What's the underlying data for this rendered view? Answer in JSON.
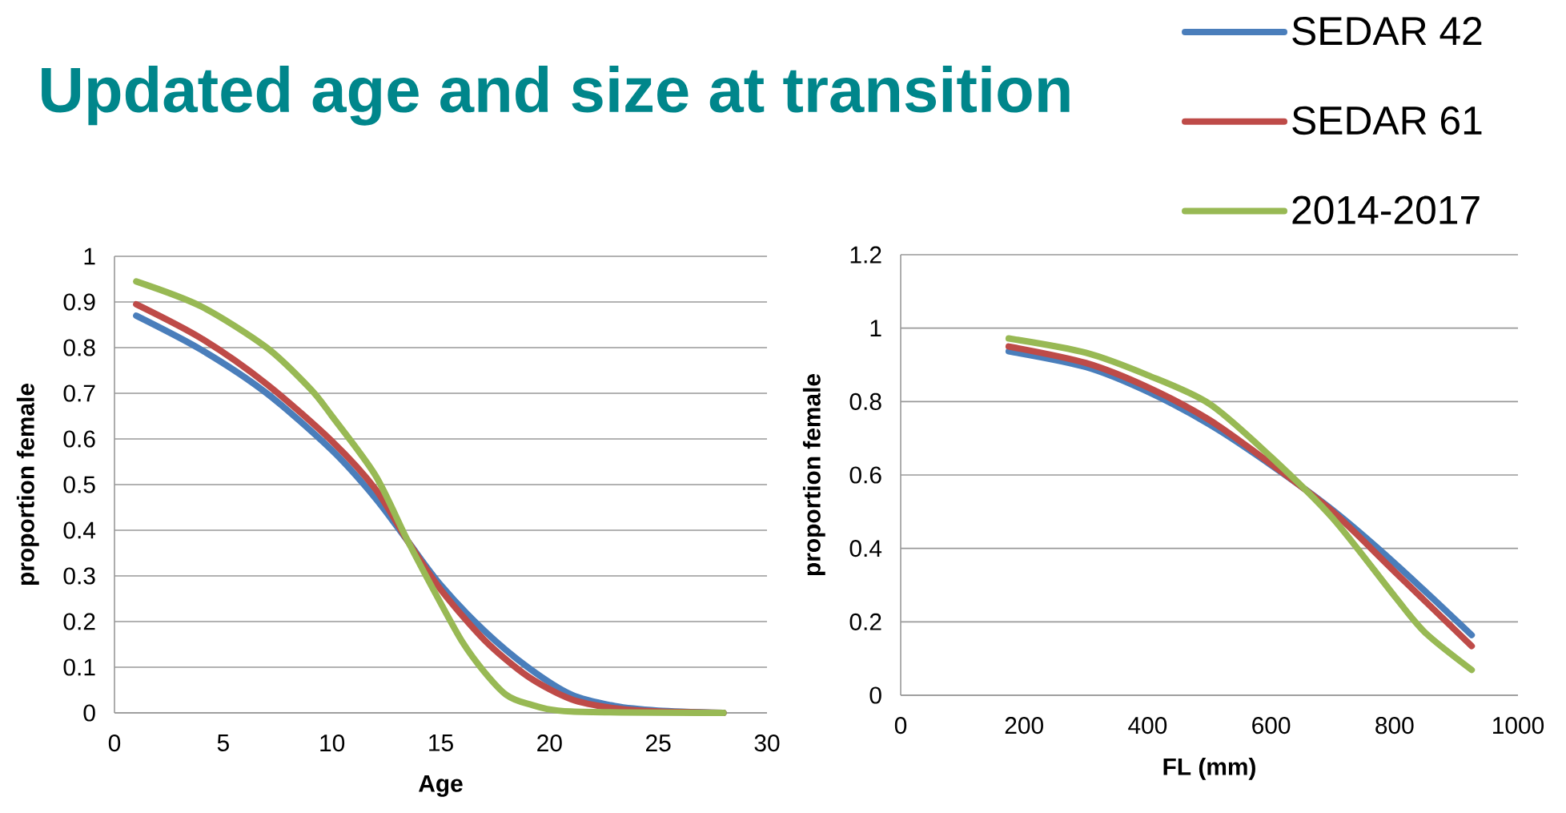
{
  "chart_data": [
    {
      "type": "line",
      "title": "Updated age and size at transition",
      "xlabel": "Age",
      "ylabel": "proportion female",
      "xlim": [
        0,
        30
      ],
      "ylim": [
        0,
        1
      ],
      "xticks": [
        0,
        5,
        10,
        15,
        20,
        25,
        30
      ],
      "yticks": [
        0,
        0.1,
        0.2,
        0.3,
        0.4,
        0.5,
        0.6,
        0.7,
        0.8,
        0.9,
        1
      ],
      "grid": "y",
      "legend": false,
      "x": [
        1,
        4,
        7,
        10,
        12,
        13.5,
        15,
        17,
        19,
        21,
        23,
        25,
        28
      ],
      "series": [
        {
          "color": "#4a7ebb",
          "values": [
            0.87,
            0.795,
            0.7,
            0.575,
            0.47,
            0.375,
            0.28,
            0.18,
            0.1,
            0.04,
            0.015,
            0.005,
            0
          ]
        },
        {
          "color": "#be4b48",
          "values": [
            0.895,
            0.82,
            0.72,
            0.595,
            0.49,
            0.375,
            0.27,
            0.16,
            0.08,
            0.03,
            0.01,
            0.003,
            0
          ]
        },
        {
          "color": "#98b954",
          "x": [
            1,
            4,
            7,
            9,
            10,
            12,
            13.5,
            15,
            16,
            17,
            18,
            19,
            21,
            28
          ],
          "values": [
            0.945,
            0.89,
            0.8,
            0.71,
            0.65,
            0.52,
            0.375,
            0.24,
            0.155,
            0.09,
            0.04,
            0.02,
            0.003,
            0
          ]
        }
      ]
    },
    {
      "type": "line",
      "xlabel": "FL (mm)",
      "ylabel": "proportion female",
      "xlim": [
        0,
        1000
      ],
      "ylim": [
        0,
        1.2
      ],
      "xticks": [
        0,
        200,
        400,
        600,
        800,
        1000
      ],
      "yticks": [
        0,
        0.2,
        0.4,
        0.6,
        0.8,
        1,
        1.2
      ],
      "grid": "y",
      "legend": "top right",
      "x": [
        175,
        300,
        400,
        500,
        600,
        700,
        800,
        925
      ],
      "series": [
        {
          "name": "SEDAR 42",
          "color": "#4a7ebb",
          "values": [
            0.937,
            0.894,
            0.827,
            0.738,
            0.627,
            0.504,
            0.36,
            0.164
          ]
        },
        {
          "name": "SEDAR 61",
          "color": "#be4b48",
          "values": [
            0.95,
            0.905,
            0.839,
            0.75,
            0.63,
            0.5,
            0.337,
            0.134
          ]
        },
        {
          "name": "2014-2017",
          "color": "#98b954",
          "x": [
            175,
            300,
            400,
            500,
            600,
            700,
            800,
            850,
            925
          ],
          "values": [
            0.972,
            0.933,
            0.872,
            0.794,
            0.649,
            0.482,
            0.27,
            0.17,
            0.069
          ]
        }
      ]
    }
  ]
}
